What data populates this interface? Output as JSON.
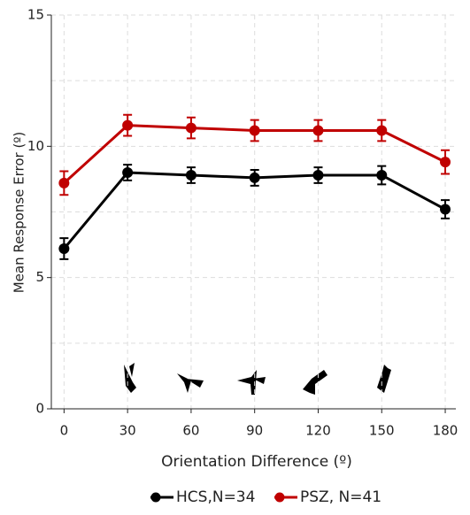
{
  "chart_data": {
    "type": "line",
    "xlabel": "Orientation Difference (º)",
    "ylabel": "Mean Response Error (º)",
    "x": [
      0,
      30,
      60,
      90,
      120,
      150,
      180
    ],
    "series": [
      {
        "name": "HCS,N=34",
        "color": "#000000",
        "values": [
          6.1,
          9.0,
          8.9,
          8.8,
          8.9,
          8.9,
          7.6
        ],
        "errors": [
          0.4,
          0.3,
          0.3,
          0.3,
          0.3,
          0.35,
          0.35
        ]
      },
      {
        "name": "PSZ, N=41",
        "color": "#c00000",
        "values": [
          8.6,
          10.8,
          10.7,
          10.6,
          10.6,
          10.6,
          9.4
        ],
        "errors": [
          0.45,
          0.4,
          0.4,
          0.4,
          0.4,
          0.4,
          0.45
        ]
      }
    ],
    "xlim": [
      -6,
      185
    ],
    "ylim": [
      0,
      15
    ],
    "xticks": [
      0,
      30,
      60,
      90,
      120,
      150,
      180
    ],
    "yticks": [
      0,
      5,
      10,
      15
    ],
    "y_minor_ticks": [
      2.5,
      7.5,
      12.5
    ],
    "grid": true,
    "legend": "bottom"
  }
}
